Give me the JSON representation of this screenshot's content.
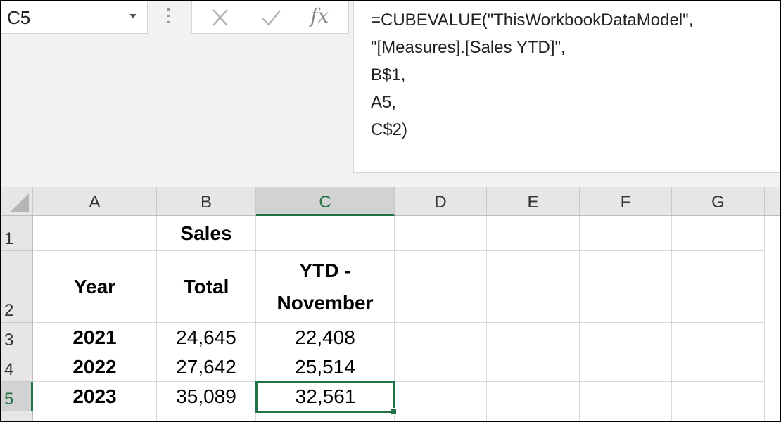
{
  "name_box": {
    "value": "C5"
  },
  "formula_bar": {
    "fx_label": "fx",
    "lines": [
      "=CUBEVALUE(\"ThisWorkbookDataModel\",",
      "\"[Measures].[Sales YTD]\",",
      "B$1,",
      "A5,",
      "C$2)"
    ]
  },
  "grid": {
    "columns": [
      "A",
      "B",
      "C",
      "D",
      "E",
      "F",
      "G"
    ],
    "active_column": "C",
    "rows": [
      "1",
      "2",
      "3",
      "4",
      "5"
    ],
    "active_row": "5",
    "cells": {
      "B1": "Sales",
      "A2": "Year",
      "B2": "Total",
      "C2_line1": "YTD -",
      "C2_line2": "November",
      "A3": "2021",
      "B3": "24,645",
      "C3": "22,408",
      "A4": "2022",
      "B4": "27,642",
      "C4": "25,514",
      "A5": "2023",
      "B5": "35,089",
      "C5": "32,561"
    }
  },
  "colors": {
    "accent": "#217346",
    "header_bg": "#e6e6e6",
    "gridline": "#d9d9d9"
  }
}
